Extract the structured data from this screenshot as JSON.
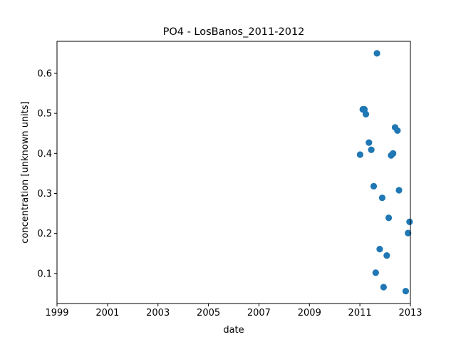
{
  "chart_data": {
    "type": "scatter",
    "title": "PO4 - LosBanos_2011-2012",
    "xlabel": "date",
    "ylabel": "concentration [unknown units]",
    "xlim": [
      "1999-01-01",
      "2013-01-01"
    ],
    "ylim": [
      0.025,
      0.68
    ],
    "xticks": [
      "1999",
      "2001",
      "2003",
      "2005",
      "2007",
      "2009",
      "2011",
      "2013"
    ],
    "yticks": [
      "0.1",
      "0.2",
      "0.3",
      "0.4",
      "0.5",
      "0.6"
    ],
    "grid": false,
    "marker_color": "#1f77b4",
    "points": [
      {
        "x": "2011-01-04",
        "y": 0.397
      },
      {
        "x": "2011-02-12",
        "y": 0.51
      },
      {
        "x": "2011-03-08",
        "y": 0.51
      },
      {
        "x": "2011-03-29",
        "y": 0.498
      },
      {
        "x": "2011-05-12",
        "y": 0.427
      },
      {
        "x": "2011-06-15",
        "y": 0.409
      },
      {
        "x": "2011-07-20",
        "y": 0.318
      },
      {
        "x": "2011-08-18",
        "y": 0.102
      },
      {
        "x": "2011-09-05",
        "y": 0.65
      },
      {
        "x": "2011-10-15",
        "y": 0.161
      },
      {
        "x": "2011-11-20",
        "y": 0.289
      },
      {
        "x": "2011-12-10",
        "y": 0.066
      },
      {
        "x": "2012-01-25",
        "y": 0.145
      },
      {
        "x": "2012-02-22",
        "y": 0.239
      },
      {
        "x": "2012-03-28",
        "y": 0.395
      },
      {
        "x": "2012-04-25",
        "y": 0.4
      },
      {
        "x": "2012-05-24",
        "y": 0.465
      },
      {
        "x": "2012-06-28",
        "y": 0.457
      },
      {
        "x": "2012-07-20",
        "y": 0.308
      },
      {
        "x": "2012-10-25",
        "y": 0.056
      },
      {
        "x": "2012-11-28",
        "y": 0.201
      },
      {
        "x": "2012-12-20",
        "y": 0.229
      }
    ]
  }
}
